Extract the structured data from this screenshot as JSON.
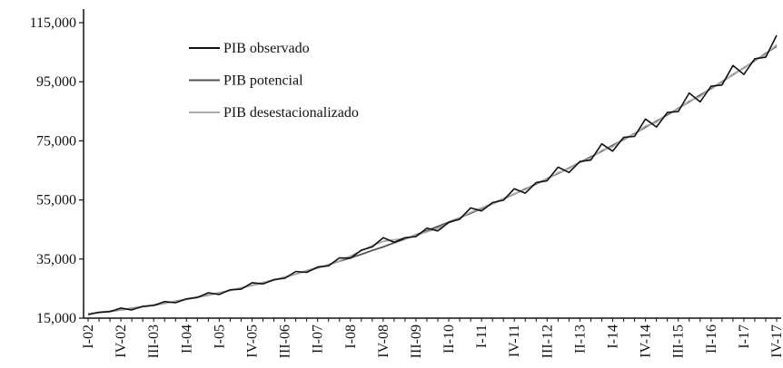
{
  "chart_data": {
    "type": "line",
    "categories": [
      "I-02",
      null,
      null,
      "IV-02",
      null,
      null,
      "III-03",
      null,
      null,
      "II-04",
      null,
      null,
      "I-05",
      null,
      null,
      "IV-05",
      null,
      null,
      "III-06",
      null,
      null,
      "II-07",
      null,
      null,
      "I-08",
      null,
      null,
      "IV-08",
      null,
      null,
      "III-09",
      null,
      null,
      "II-10",
      null,
      null,
      "I-11",
      null,
      null,
      "IV-11",
      null,
      null,
      "III-12",
      null,
      null,
      "II-13",
      null,
      null,
      "I-14",
      null,
      null,
      "IV-14",
      null,
      null,
      "III-15",
      null,
      null,
      "II-16",
      null,
      null,
      "I-17",
      null,
      null,
      "IV-17"
    ],
    "series": [
      {
        "name": "PIB observado",
        "color": "#111111",
        "values": [
          16200,
          17000,
          17200,
          18400,
          17800,
          19000,
          19300,
          20600,
          20200,
          21500,
          22000,
          23600,
          23000,
          24600,
          24800,
          27000,
          26600,
          28000,
          28500,
          30800,
          30500,
          32300,
          32700,
          35400,
          35300,
          38000,
          39100,
          42200,
          40700,
          42200,
          42600,
          45500,
          44500,
          47400,
          48500,
          52300,
          51300,
          54100,
          54900,
          58800,
          57300,
          60900,
          61500,
          66100,
          64300,
          68000,
          68500,
          74000,
          71500,
          76200,
          76500,
          82400,
          79700,
          84600,
          84900,
          91200,
          88200,
          93500,
          93900,
          100500,
          97500,
          102800,
          103300,
          110700
        ]
      },
      {
        "name": "PIB potencial",
        "color": "#555555",
        "values": [
          16500,
          16900,
          17300,
          17800,
          18300,
          18900,
          19400,
          20000,
          20700,
          21400,
          22100,
          22800,
          23600,
          24400,
          25200,
          26100,
          27000,
          27900,
          28900,
          29900,
          31000,
          32000,
          33100,
          34300,
          35400,
          36600,
          37900,
          39100,
          40500,
          41800,
          43200,
          44600,
          46000,
          47500,
          49000,
          50500,
          52100,
          53700,
          55300,
          57000,
          58700,
          60400,
          62200,
          64000,
          65800,
          67700,
          69600,
          71500,
          73500,
          75500,
          77500,
          79600,
          81700,
          83800,
          86000,
          88200,
          90500,
          92700,
          95000,
          97400,
          99700,
          102100,
          104600,
          107000
        ]
      },
      {
        "name": "PIB desestacionalizado",
        "color": "#aaaaaa",
        "values": [
          16500,
          16900,
          17400,
          17900,
          18200,
          18900,
          19500,
          20000,
          20600,
          21400,
          22200,
          22900,
          23500,
          24500,
          25100,
          26200,
          27100,
          27900,
          28800,
          29900,
          31100,
          32100,
          33000,
          34400,
          36000,
          37800,
          39500,
          41000,
          41500,
          42000,
          43000,
          44200,
          45400,
          47200,
          49000,
          50800,
          52300,
          53800,
          55500,
          57100,
          58500,
          60600,
          62100,
          64200,
          65600,
          67700,
          69200,
          71800,
          73000,
          75800,
          77300,
          80000,
          81300,
          84200,
          85800,
          88500,
          90000,
          93000,
          94800,
          97600,
          99500,
          102300,
          104300,
          107500
        ]
      }
    ],
    "ylim": [
      15000,
      115000
    ],
    "yticks": [
      {
        "value": 15000,
        "label": "15,000"
      },
      {
        "value": 35000,
        "label": "35,000"
      },
      {
        "value": 55000,
        "label": "55,000"
      },
      {
        "value": 75000,
        "label": "75,000"
      },
      {
        "value": 95000,
        "label": "95,000"
      },
      {
        "value": 115000,
        "label": "115,000"
      }
    ],
    "legend": "upper-left"
  }
}
